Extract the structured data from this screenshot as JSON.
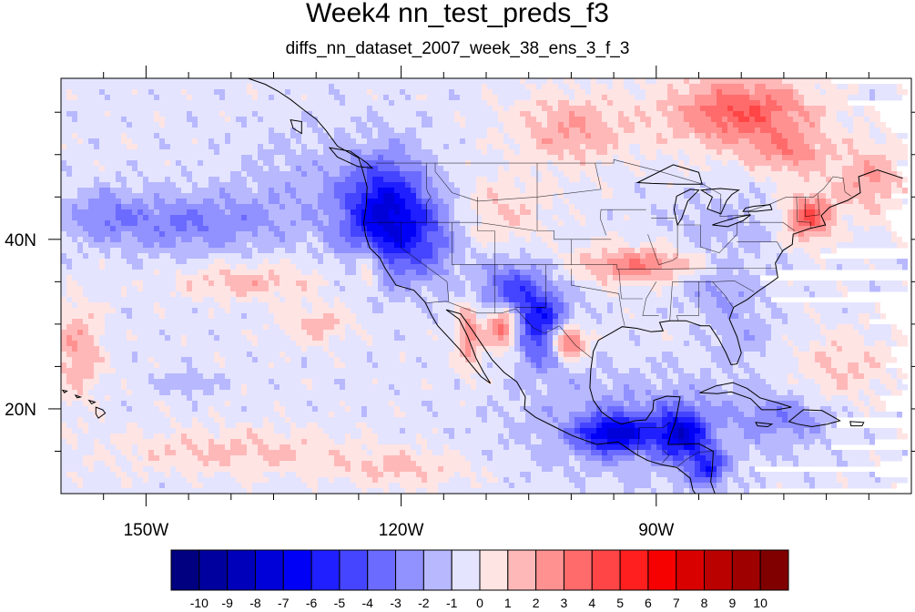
{
  "figure": {
    "title": "Week4 nn_test_preds_f3",
    "subtitle": "diffs_nn_dataset_2007_week_38_ens_3_f_3"
  },
  "map": {
    "lon_range": [
      -160,
      -60
    ],
    "lat_range": [
      10,
      59
    ],
    "x_ticks": [
      {
        "value": -150,
        "label": "150W"
      },
      {
        "value": -120,
        "label": "120W"
      },
      {
        "value": -90,
        "label": "90W"
      }
    ],
    "y_ticks": [
      {
        "value": 40,
        "label": "40N"
      },
      {
        "value": 20,
        "label": "20N"
      }
    ]
  },
  "colorbar": {
    "labels": [
      "-10",
      "-9",
      "-8",
      "-7",
      "-6",
      "-5",
      "-4",
      "-3",
      "-2",
      "-1",
      "0",
      "1",
      "2",
      "3",
      "4",
      "5",
      "6",
      "7",
      "8",
      "9",
      "10"
    ],
    "colors": [
      "#000080",
      "#00009e",
      "#0000bb",
      "#0000d9",
      "#0000f7",
      "#1f1fff",
      "#4545ff",
      "#6b6bff",
      "#9191ff",
      "#b8b8ff",
      "#e4e4ff",
      "#ffe4e4",
      "#ffb8b8",
      "#ff9191",
      "#ff6b6b",
      "#ff4545",
      "#ff1f1f",
      "#f70000",
      "#d90000",
      "#bb0000",
      "#9e0000",
      "#800000"
    ]
  },
  "chart_data": {
    "type": "heatmap",
    "projection": "cylindrical equidistant",
    "variable": "diffs (week 4 prediction difference)",
    "levels": [
      -10,
      -9,
      -8,
      -7,
      -6,
      -5,
      -4,
      -3,
      -2,
      -1,
      0,
      1,
      2,
      3,
      4,
      5,
      6,
      7,
      8,
      9,
      10
    ],
    "lon_range": [
      -160,
      -60
    ],
    "lat_range": [
      10,
      59
    ],
    "background_level_between": [
      -1,
      0
    ],
    "anomalies": [
      {
        "lon": -122,
        "lat": 43,
        "sx": 3.5,
        "sy": 4.5,
        "value": -7
      },
      {
        "lon": -117,
        "lat": 40,
        "sx": 3,
        "sy": 3.5,
        "value": -3
      },
      {
        "lon": -107,
        "lat": 33,
        "sx": 3,
        "sy": 3,
        "value": -5
      },
      {
        "lon": -103,
        "lat": 29,
        "sx": 2.5,
        "sy": 3,
        "value": -5
      },
      {
        "lon": -100.5,
        "lat": 28,
        "sx": 1.5,
        "sy": 1.5,
        "value": 6
      },
      {
        "lon": -108,
        "lat": 30,
        "sx": 1.5,
        "sy": 2,
        "value": 6
      },
      {
        "lon": -112,
        "lat": 29,
        "sx": 1,
        "sy": 3,
        "value": 3
      },
      {
        "lon": -124,
        "lat": 37,
        "sx": 1,
        "sy": 1.5,
        "value": 3
      },
      {
        "lon": -108,
        "lat": 43,
        "sx": 4,
        "sy": 3,
        "value": 1
      },
      {
        "lon": -92,
        "lat": 37,
        "sx": 5,
        "sy": 1.5,
        "value": 3
      },
      {
        "lon": -72,
        "lat": 42.5,
        "sx": 2,
        "sy": 2,
        "value": 4
      },
      {
        "lon": -82,
        "lat": 41,
        "sx": 5,
        "sy": 3,
        "value": -1.5
      },
      {
        "lon": -83,
        "lat": 34,
        "sx": 3,
        "sy": 2,
        "value": -2
      },
      {
        "lon": -80,
        "lat": 55,
        "sx": 6,
        "sy": 3,
        "value": 4
      },
      {
        "lon": -74,
        "lat": 50,
        "sx": 3,
        "sy": 2,
        "value": 2
      },
      {
        "lon": -65,
        "lat": 47,
        "sx": 3,
        "sy": 3,
        "value": 2
      },
      {
        "lon": -100,
        "lat": 53,
        "sx": 5,
        "sy": 3,
        "value": 2
      },
      {
        "lon": -145,
        "lat": 42,
        "sx": 8,
        "sy": 2.5,
        "value": -3
      },
      {
        "lon": -155,
        "lat": 43,
        "sx": 3,
        "sy": 2,
        "value": -2
      },
      {
        "lon": -132,
        "lat": 47,
        "sx": 5,
        "sy": 4,
        "value": -1.5
      },
      {
        "lon": -138,
        "lat": 35,
        "sx": 6,
        "sy": 1.5,
        "value": 1.5
      },
      {
        "lon": -130,
        "lat": 30,
        "sx": 3,
        "sy": 1.5,
        "value": 1.5
      },
      {
        "lon": -158,
        "lat": 27,
        "sx": 2,
        "sy": 4,
        "value": 2
      },
      {
        "lon": -140,
        "lat": 15,
        "sx": 10,
        "sy": 2,
        "value": 1.2
      },
      {
        "lon": -120,
        "lat": 13,
        "sx": 6,
        "sy": 1.5,
        "value": 1.2
      },
      {
        "lon": -95,
        "lat": 17,
        "sx": 3,
        "sy": 1.5,
        "value": -6
      },
      {
        "lon": -87,
        "lat": 17,
        "sx": 2,
        "sy": 2,
        "value": -6
      },
      {
        "lon": -84,
        "lat": 13,
        "sx": 1.5,
        "sy": 1.5,
        "value": -5
      },
      {
        "lon": -92,
        "lat": 18,
        "sx": 9,
        "sy": 4,
        "value": -2.5
      },
      {
        "lon": -75,
        "lat": 19,
        "sx": 4,
        "sy": 2,
        "value": -2.5
      },
      {
        "lon": -68,
        "lat": 25,
        "sx": 4,
        "sy": 3,
        "value": 1.2
      },
      {
        "lon": -80,
        "lat": 29,
        "sx": 3,
        "sy": 3,
        "value": -1.5
      },
      {
        "lon": -145,
        "lat": 23,
        "sx": 2,
        "sy": 1,
        "value": -2
      }
    ]
  }
}
